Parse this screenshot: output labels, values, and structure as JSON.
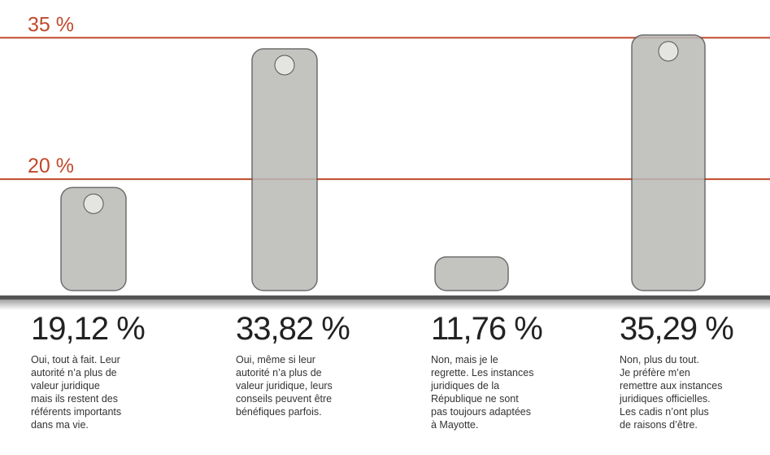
{
  "chart_data": {
    "type": "pictogram",
    "values": [
      19.12,
      33.82,
      11.76,
      35.29
    ],
    "value_labels": [
      "19,12 %",
      "33,82 %",
      "11,76 %",
      "35,29 %"
    ],
    "descriptions": [
      [
        "Oui, tout à fait. Leur",
        "autorité n’a plus de",
        "valeur juridique",
        "mais ils restent des",
        "référents importants",
        "dans ma vie."
      ],
      [
        "Oui, même si leur",
        "autorité n’a plus de",
        "valeur juridique, leurs",
        "conseils peuvent être",
        "bénéfiques parfois."
      ],
      [
        "Non, mais je le",
        "regrette. Les instances",
        "juridiques de la",
        "République ne sont",
        "pas toujours adaptées",
        "à Mayotte."
      ],
      [
        "Non, plus du tout.",
        "Je préfère m’en",
        "remettre aux instances",
        "juridiques officielles.",
        "Les cadis n’ont plus",
        "de raisons d’être."
      ]
    ],
    "ylim": [
      7.5,
      39
    ],
    "yticks": [
      {
        "value": 20,
        "label": "20 %"
      },
      {
        "value": 35,
        "label": "35 %"
      }
    ],
    "grid": true,
    "line_color": "#c0492b",
    "mark_color": "#b9b9b6"
  }
}
